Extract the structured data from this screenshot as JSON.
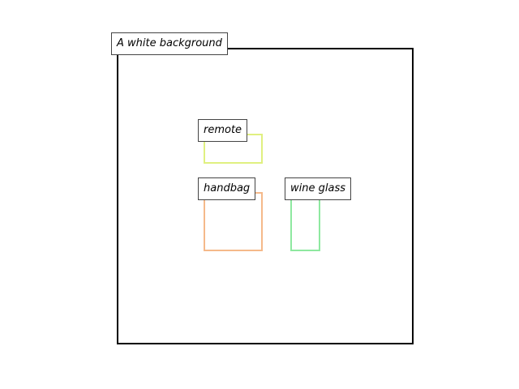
{
  "scene": {
    "caption": "A white background"
  },
  "objects": [
    {
      "label": "remote",
      "color": "#e0f080"
    },
    {
      "label": "handbag",
      "color": "#f5b98a"
    },
    {
      "label": "wine glass",
      "color": "#8ee8a0"
    }
  ]
}
